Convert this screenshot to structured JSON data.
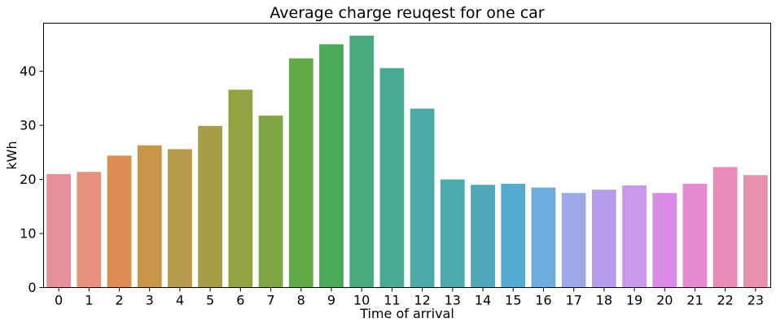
{
  "chart_data": {
    "type": "bar",
    "title": "Average charge reuqest for one car",
    "xlabel": "Time of arrival",
    "ylabel": "kWh",
    "categories": [
      "0",
      "1",
      "2",
      "3",
      "4",
      "5",
      "6",
      "7",
      "8",
      "9",
      "10",
      "11",
      "12",
      "13",
      "14",
      "15",
      "16",
      "17",
      "18",
      "19",
      "20",
      "21",
      "22",
      "23"
    ],
    "values": [
      21.0,
      21.4,
      24.4,
      26.3,
      25.6,
      29.9,
      36.6,
      31.8,
      42.4,
      45.0,
      46.6,
      40.6,
      33.1,
      20.0,
      19.0,
      19.2,
      18.5,
      17.5,
      18.1,
      18.9,
      17.5,
      19.2,
      22.3,
      20.8
    ],
    "colors": [
      "#e8909a",
      "#e6927f",
      "#dd8d52",
      "#c99649",
      "#b89b4a",
      "#a79d46",
      "#95a443",
      "#80a544",
      "#63aa47",
      "#4aaa5a",
      "#4aaa7e",
      "#4aab95",
      "#4aa9a4",
      "#4ca9ac",
      "#4ea8ba",
      "#53abd1",
      "#6eacde",
      "#9eaae8",
      "#b59ceb",
      "#c899e9",
      "#db8be6",
      "#e689d0",
      "#e98cb7",
      "#e891ad"
    ],
    "ylim": [
      0,
      48.9
    ],
    "yticks": [
      0,
      10,
      20,
      30,
      40
    ],
    "grid": false,
    "legend": "none"
  }
}
